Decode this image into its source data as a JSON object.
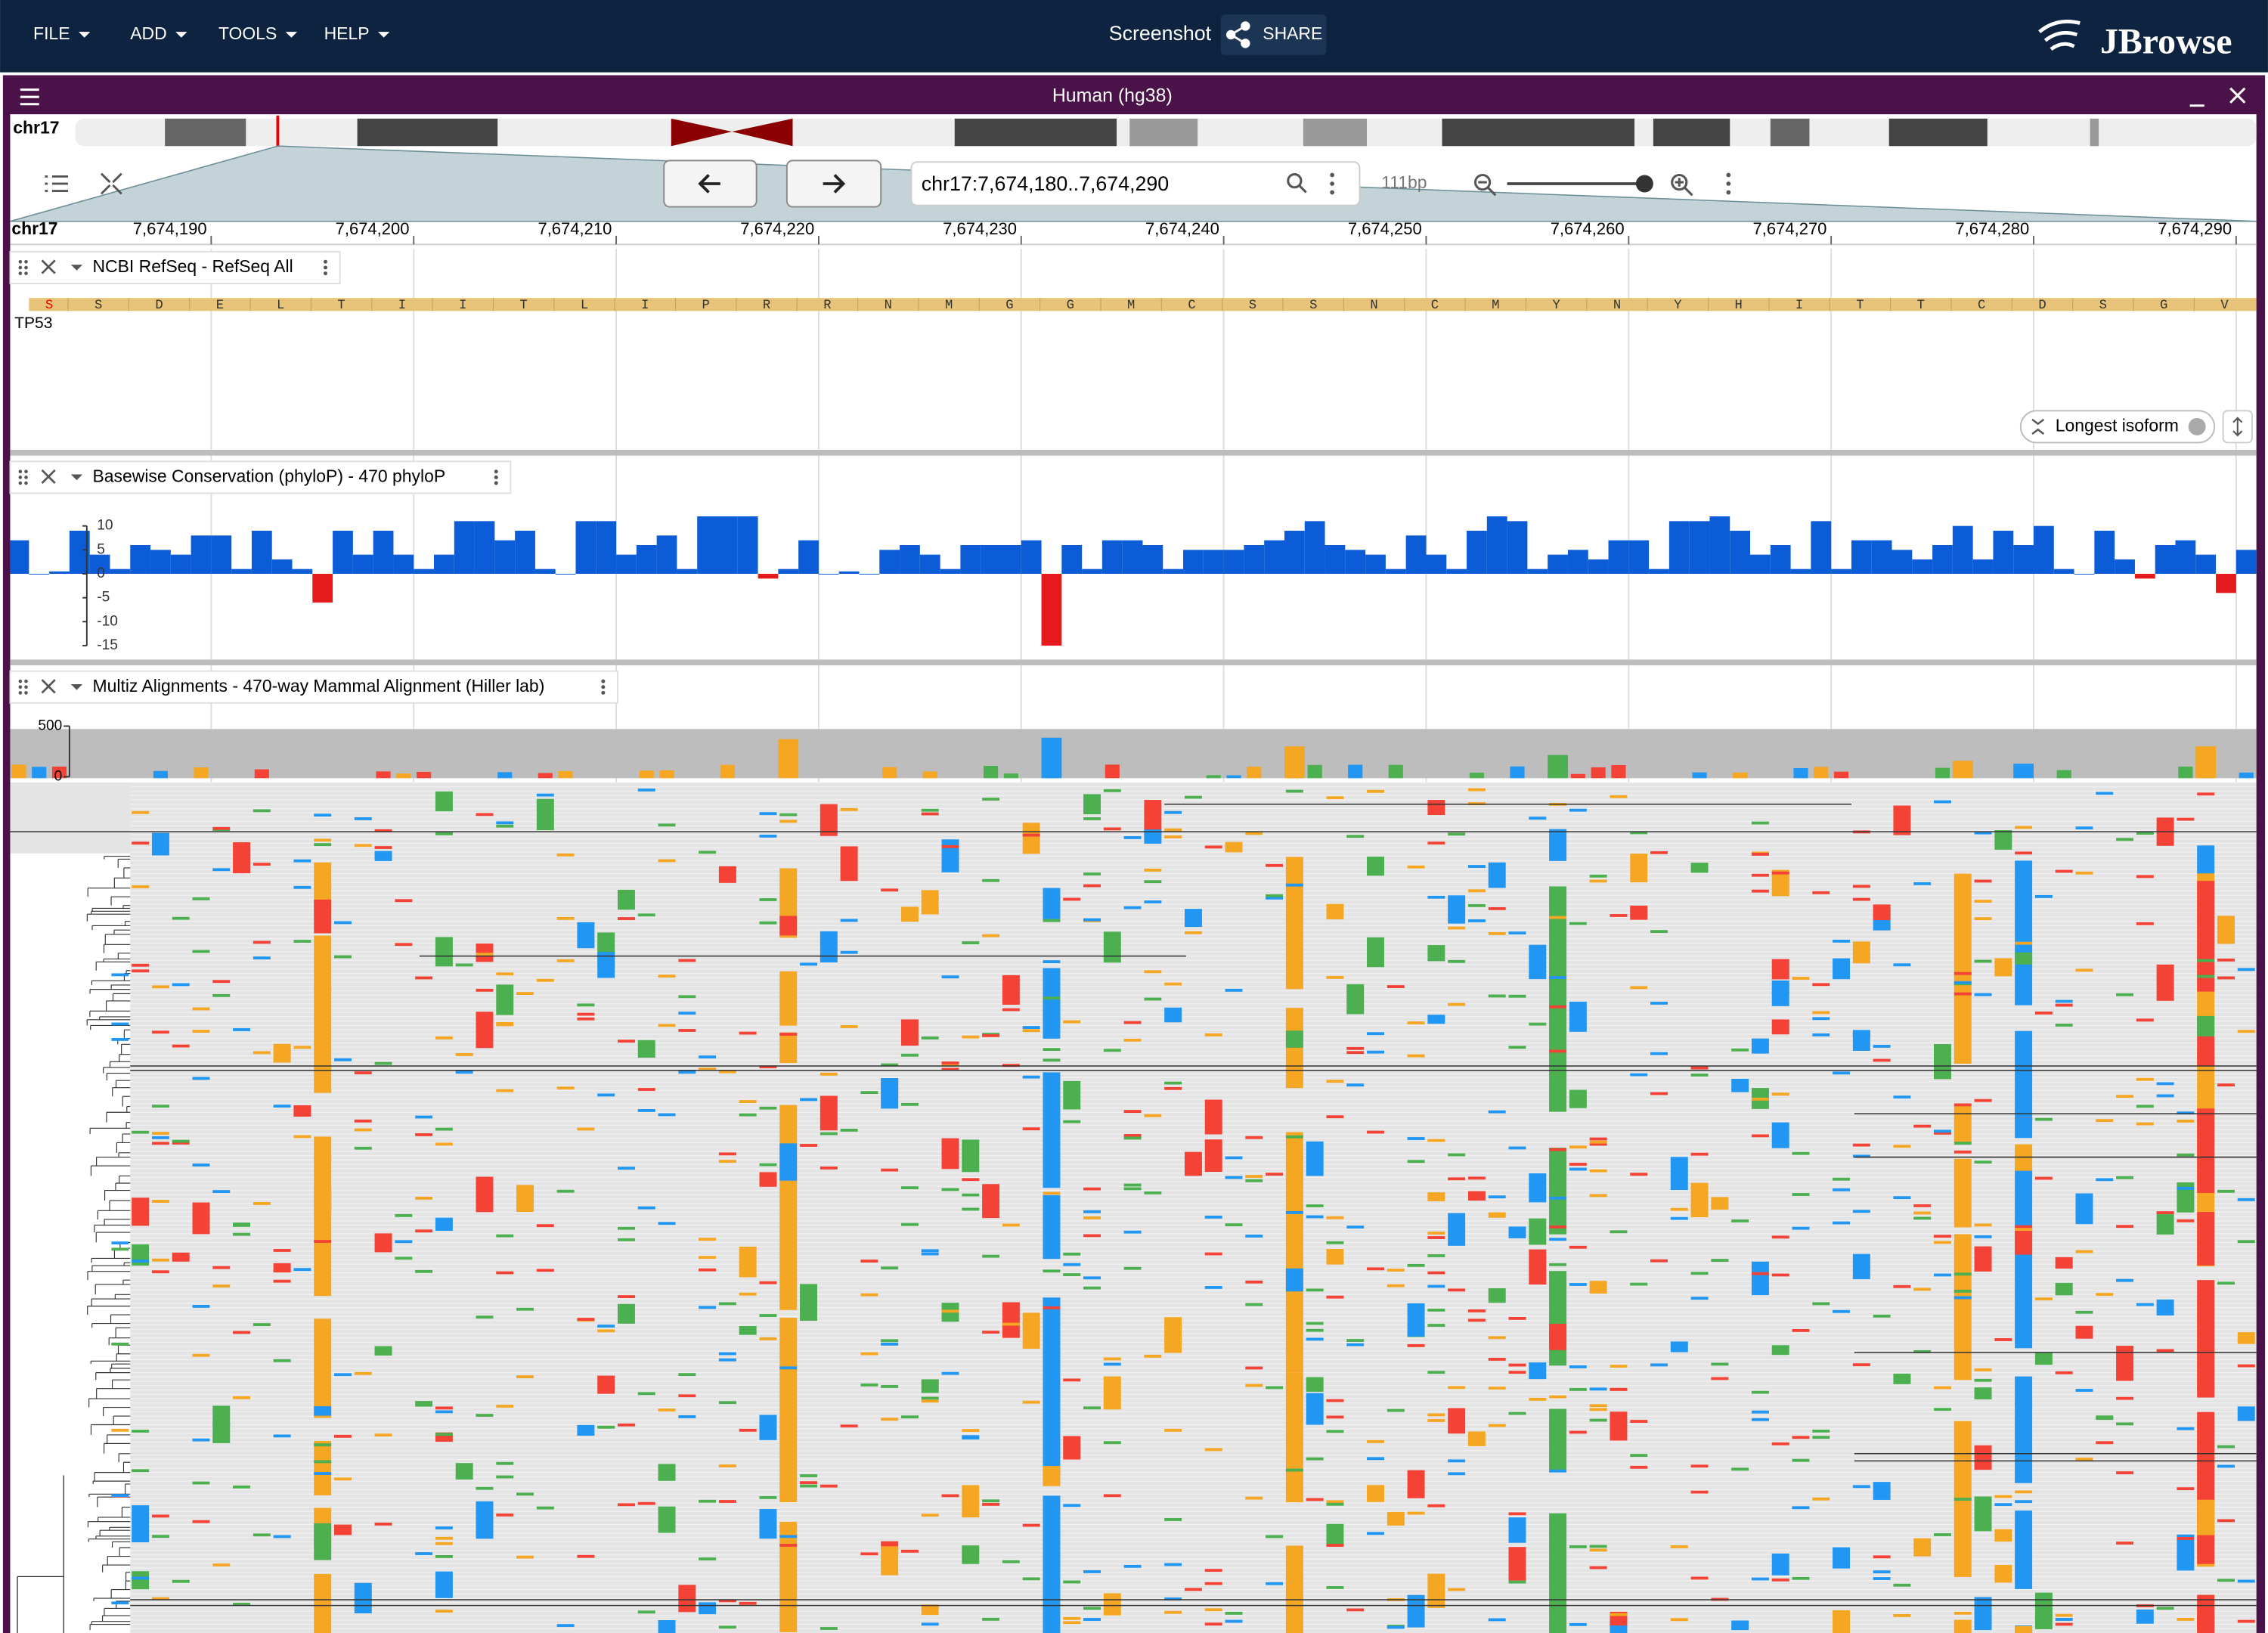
{
  "menu": [
    "FILE",
    "ADD",
    "TOOLS",
    "HELP"
  ],
  "header": {
    "title": "Screenshot",
    "share": "SHARE",
    "logo": "JBrowse"
  },
  "view": {
    "title": "Human (hg38)",
    "chromosome": "chr17",
    "location": "chr17:7,674,180..7,674,290",
    "span": "111bp"
  },
  "ruler": {
    "label": "chr17",
    "ticks": [
      {
        "value": 7674190,
        "label": "7,674,190"
      },
      {
        "value": 7674200,
        "label": "7,674,200"
      },
      {
        "value": 7674210,
        "label": "7,674,210"
      },
      {
        "value": 7674220,
        "label": "7,674,220"
      },
      {
        "value": 7674230,
        "label": "7,674,230"
      },
      {
        "value": 7674240,
        "label": "7,674,240"
      },
      {
        "value": 7674250,
        "label": "7,674,250"
      },
      {
        "value": 7674260,
        "label": "7,674,260"
      },
      {
        "value": 7674270,
        "label": "7,674,270"
      },
      {
        "value": 7674280,
        "label": "7,674,280"
      },
      {
        "value": 7674290,
        "label": "7,674,290"
      }
    ]
  },
  "tracks": [
    {
      "name": "NCBI RefSeq - RefSeq All",
      "gene": "TP53",
      "chip": "Longest isoform",
      "amino_acids": [
        "S",
        "S",
        "D",
        "E",
        "L",
        "T",
        "I",
        "I",
        "T",
        "L",
        "I",
        "P",
        "R",
        "R",
        "N",
        "M",
        "G",
        "G",
        "M",
        "C",
        "S",
        "S",
        "N",
        "C",
        "M",
        "Y",
        "N",
        "Y",
        "H",
        "I",
        "T",
        "T",
        "C",
        "D",
        "S",
        "G",
        "V"
      ]
    },
    {
      "name": "Basewise Conservation (phyloP) - 470 phyloP",
      "type": "bar",
      "ylim": [
        -15.5,
        12
      ],
      "yticks": [
        10,
        5,
        0,
        -5,
        -10,
        -15
      ],
      "values": [
        7,
        0,
        0.5,
        9,
        4,
        1,
        6,
        5,
        4,
        8,
        8,
        1,
        9,
        3,
        1,
        -6,
        9,
        4,
        9,
        4,
        1,
        4,
        11,
        11,
        7,
        9,
        1,
        0,
        11,
        11,
        4,
        6,
        8,
        1,
        12,
        12,
        12,
        -1,
        1,
        7,
        0,
        0.5,
        0,
        5,
        6,
        4,
        1,
        6,
        6,
        6,
        7,
        -15,
        6,
        1,
        7,
        7,
        6,
        1,
        5,
        5,
        5,
        6,
        7,
        9,
        11,
        6,
        5,
        4,
        1,
        8,
        4,
        1,
        9,
        12,
        11,
        1,
        4,
        5,
        3,
        7,
        7,
        1,
        11,
        11,
        12,
        9,
        4,
        6,
        1,
        11,
        1,
        7,
        7,
        5,
        3,
        6,
        10,
        3,
        9,
        6,
        10,
        1,
        0,
        9,
        3,
        -1,
        6,
        7,
        4,
        -4,
        5
      ]
    },
    {
      "name": "Multiz Alignments - 470-way Mammal Alignment (Hiller lab)",
      "coverage_ticks": [
        500,
        0
      ]
    }
  ]
}
